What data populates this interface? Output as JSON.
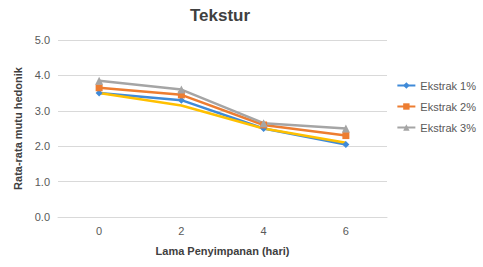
{
  "chart_data": {
    "type": "line",
    "title": "Tekstur",
    "x_label": "Lama Penyimpanan (hari)",
    "y_label": "Rata-rata mutu hedonik",
    "categories": [
      "0",
      "2",
      "4",
      "6"
    ],
    "series": [
      {
        "name": "Ekstrak 1%",
        "color": "#3f8ad8",
        "marker": "diamond",
        "values": [
          3.5,
          3.3,
          2.5,
          2.05
        ]
      },
      {
        "name": "Ekstrak 2%",
        "color": "#ed7d31",
        "marker": "square",
        "values": [
          3.65,
          3.45,
          2.6,
          2.3
        ]
      },
      {
        "name": "Ekstrak 3%",
        "color": "#a5a5a5",
        "marker": "triangle",
        "values": [
          3.85,
          3.6,
          2.65,
          2.5
        ]
      },
      {
        "color": "#ffc000",
        "marker": "none",
        "values": [
          3.5,
          3.15,
          2.5,
          2.1
        ]
      }
    ],
    "ylim": [
      0,
      5
    ],
    "yticks": [
      {
        "value": 0,
        "label": "0.0"
      },
      {
        "value": 1,
        "label": "1.0"
      },
      {
        "value": 2,
        "label": "2.0"
      },
      {
        "value": 3,
        "label": "3.0"
      },
      {
        "value": 4,
        "label": "4.0"
      },
      {
        "value": 5,
        "label": "5.0"
      }
    ],
    "grid": true,
    "legend": "right"
  }
}
